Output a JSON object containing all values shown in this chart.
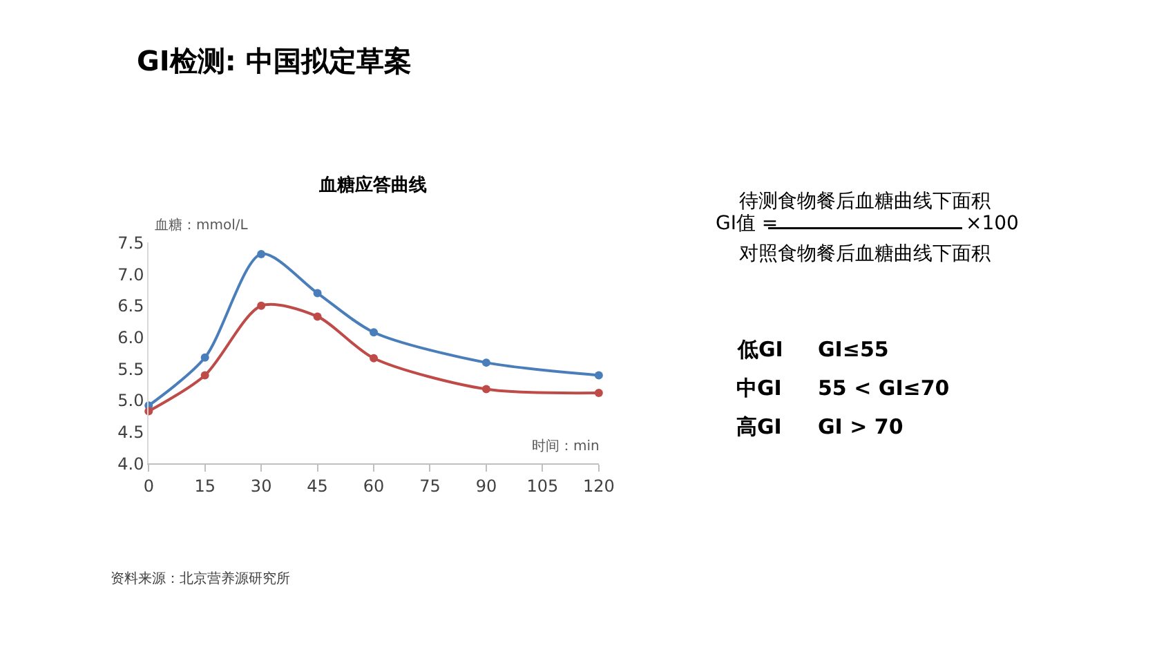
{
  "chart_data": {
    "type": "line",
    "title": "GI检测: 中国拟定草案",
    "subtitle": "血糖应答曲线",
    "ylabel": "血糖：mmol/L",
    "xlabel": "时间：min",
    "x": [
      0,
      15,
      30,
      45,
      60,
      90,
      120
    ],
    "series": [
      {
        "color": "#4a7ebb",
        "values": [
          4.92,
          5.68,
          7.32,
          6.7,
          6.08,
          5.6,
          5.4
        ]
      },
      {
        "color": "#be4b48",
        "values": [
          4.83,
          5.4,
          6.5,
          6.33,
          5.67,
          5.18,
          5.12
        ]
      }
    ],
    "xlim": [
      0,
      120
    ],
    "xticks": [
      0,
      15,
      30,
      45,
      60,
      75,
      90,
      105,
      120
    ],
    "ylim": [
      4.0,
      7.5
    ],
    "yticks": [
      {
        "value": 4,
        "label": "4.0"
      },
      4.5,
      {
        "value": 5,
        "label": "5.0"
      },
      5.5,
      {
        "value": 6,
        "label": "6.0"
      },
      6.5,
      {
        "value": 7,
        "label": "7.0"
      },
      7.5
    ],
    "marker": "circle",
    "line_style": "solid",
    "annotations": [
      "GI值 =",
      "待测食物餐后血糖曲线下面积",
      "对照食物餐后血糖曲线下面积",
      "×100",
      "低GI",
      "GI≤55",
      "中GI",
      "55 < GI≤70",
      "高GI",
      "GI > 70",
      "资料来源：北京营养源研究所"
    ]
  }
}
